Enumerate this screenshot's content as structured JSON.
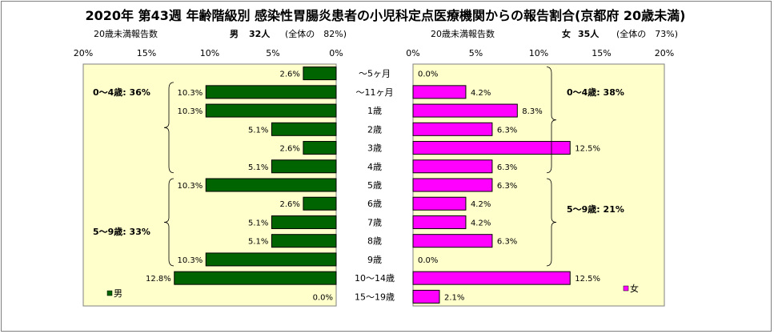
{
  "title": "2020年 第43週 年齢階級別 感染性胃腸炎患者の小児科定点医療機関からの報告割合(京都府 20歳未満)",
  "left_header": {
    "caption": "20歳未満報告数",
    "gender": "男",
    "count": "32人",
    "share": "(全体の　82%)"
  },
  "right_header": {
    "caption": "20歳未満報告数",
    "gender": "女",
    "count": "35人",
    "share": "(全体の　73%)"
  },
  "chart_data": {
    "type": "bar",
    "categories": [
      "～5ヶ月",
      "～11ヶ月",
      "1歳",
      "2歳",
      "3歳",
      "4歳",
      "5歳",
      "6歳",
      "7歳",
      "8歳",
      "9歳",
      "10～14歳",
      "15～19歳"
    ],
    "series": [
      {
        "name": "男",
        "color": "#006400",
        "values": [
          2.6,
          10.3,
          10.3,
          5.1,
          2.6,
          5.1,
          10.3,
          2.6,
          5.1,
          5.1,
          10.3,
          12.8,
          0.0
        ],
        "labels": [
          "2.6%",
          "10.3%",
          "10.3%",
          "5.1%",
          "2.6%",
          "5.1%",
          "10.3%",
          "2.6%",
          "5.1%",
          "5.1%",
          "10.3%",
          "12.8%",
          "0.0%"
        ]
      },
      {
        "name": "女",
        "color": "#ff00ff",
        "values": [
          0.0,
          4.2,
          8.3,
          6.3,
          12.5,
          6.3,
          6.3,
          4.2,
          4.2,
          6.3,
          0.0,
          12.5,
          2.1
        ],
        "labels": [
          "0.0%",
          "4.2%",
          "8.3%",
          "6.3%",
          "12.5%",
          "6.3%",
          "6.3%",
          "4.2%",
          "4.2%",
          "6.3%",
          "0.0%",
          "12.5%",
          "2.1%"
        ]
      }
    ],
    "x_ticks_left": [
      "20%",
      "15%",
      "10%",
      "5%",
      "0%"
    ],
    "x_ticks_right": [
      "0%",
      "5%",
      "10%",
      "15%",
      "20%"
    ],
    "xlim": [
      0,
      20
    ],
    "plot_background": "#ffffcc",
    "groups": {
      "male": [
        {
          "label": "0～4歳: 36%",
          "from": 1,
          "to": 5
        },
        {
          "label": "5～9歳: 33%",
          "from": 6,
          "to": 10
        }
      ],
      "female": [
        {
          "label": "0～4歳: 38%",
          "from": 0,
          "to": 5
        },
        {
          "label": "5～9歳: 21%",
          "from": 6,
          "to": 10
        }
      ]
    }
  }
}
